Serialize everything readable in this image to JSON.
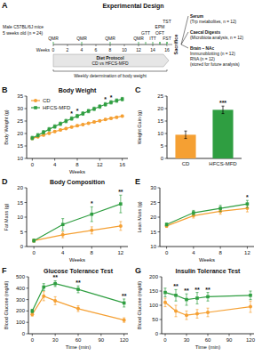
{
  "panel_a": {
    "panel": "A",
    "title": "Experimental Design",
    "subject": [
      "Male C57BL/6J mice",
      "5 weeks old (n = 24)"
    ],
    "weeks_label": "Weeks",
    "weeks": [
      0,
      2,
      4,
      6,
      8,
      10,
      12,
      14,
      16
    ],
    "events": [
      {
        "week": 0,
        "label": "QMR"
      },
      {
        "week": 4,
        "label": "QMR"
      },
      {
        "week": 8,
        "label": "QMR"
      },
      {
        "week": 12,
        "label": "QMR"
      },
      {
        "week": 13,
        "label": "GTT"
      },
      {
        "week": 14,
        "label": "ITT"
      },
      {
        "week": 15,
        "label": "OFT"
      },
      {
        "week": 15,
        "label": "EPM"
      },
      {
        "week": 16,
        "label": "FST"
      },
      {
        "week": 16,
        "label": "TST"
      }
    ],
    "diet": [
      "Diet Protocol",
      "CD vs HFCS-MFD"
    ],
    "weight_note": "Weekly determination of body weight",
    "endpoint": "Sacrifice",
    "outputs": [
      [
        "Serum",
        "(Trp metabolites, n = 12)"
      ],
      [
        "Caecal Digests",
        "(Microbiota analysis, n = 12)"
      ],
      [
        "Brain – NAc",
        "Immunoblotting (n = 12)",
        "RNA (n = 12)",
        "(stored for future analysis)"
      ]
    ]
  },
  "chart_data": [
    {
      "panel": "B",
      "type": "line",
      "title": "Body Weight",
      "x_label": "Weeks",
      "y_label": "Body Weight (g)",
      "x": [
        0,
        1,
        2,
        3,
        4,
        5,
        6,
        7,
        8,
        9,
        10,
        11,
        12,
        13,
        14,
        15,
        16
      ],
      "xlim": [
        -1,
        17
      ],
      "xticks": [
        0,
        4,
        8,
        12,
        16
      ],
      "ylim": [
        10,
        35
      ],
      "yticks": [
        10,
        15,
        20,
        25,
        30,
        35
      ],
      "legend": "upper-left",
      "series": [
        {
          "name": "CD",
          "color": "#f5a033",
          "marker": "circle",
          "values": [
            18,
            18.7,
            19.4,
            20.1,
            20.8,
            21.4,
            22,
            22.6,
            23.1,
            23.6,
            24.1,
            24.6,
            25.1,
            25.6,
            26.1,
            26.5,
            27
          ],
          "errors": [
            0.4,
            0.4,
            0.4,
            0.4,
            0.4,
            0.4,
            0.4,
            0.4,
            0.4,
            0.4,
            0.4,
            0.4,
            0.4,
            0.4,
            0.4,
            0.4,
            0.4
          ]
        },
        {
          "name": "HFCS-MFD",
          "color": "#2f9e41",
          "marker": "square",
          "values": [
            18.2,
            19.3,
            20.5,
            21.7,
            22.8,
            23.9,
            25,
            26,
            27,
            28,
            29,
            29.9,
            30.8,
            31.7,
            32.5,
            33.2,
            33.8
          ],
          "errors": [
            0.7,
            0.7,
            0.7,
            0.7,
            0.7,
            0.7,
            0.7,
            0.7,
            0.7,
            0.7,
            0.7,
            0.7,
            0.7,
            0.7,
            0.7,
            0.7,
            0.7
          ]
        }
      ],
      "annotations": [
        {
          "x": 7,
          "text": "*"
        },
        {
          "x": 8,
          "text": "*"
        },
        {
          "x": 13,
          "text": "*"
        },
        {
          "x": 14,
          "text": "*"
        }
      ]
    },
    {
      "panel": "C",
      "type": "bar",
      "title": "",
      "y_label": "Weight Gain (g)",
      "categories": [
        "CD",
        "HFCS-MFD"
      ],
      "values": [
        9.5,
        19.5
      ],
      "errors": [
        1.5,
        1.5
      ],
      "colors": [
        "#f5a033",
        "#2f9e41"
      ],
      "ylim": [
        0,
        25
      ],
      "yticks": [
        0,
        5,
        10,
        15,
        20,
        25
      ],
      "annotations": [
        {
          "category": "HFCS-MFD",
          "text": "***"
        }
      ]
    },
    {
      "panel": "D",
      "type": "line",
      "title": "Body Composition",
      "x_label": "Weeks",
      "y_label": "Fat Mass (g)",
      "x": [
        0,
        4,
        8,
        12
      ],
      "xlim": [
        -1,
        13
      ],
      "xticks": [
        0,
        4,
        8,
        12
      ],
      "ylim": [
        0,
        20
      ],
      "yticks": [
        0,
        5,
        10,
        15,
        20
      ],
      "series": [
        {
          "name": "CD",
          "color": "#f5a033",
          "marker": "circle",
          "values": [
            2,
            4,
            5.5,
            7
          ],
          "errors": [
            0.5,
            1,
            1.2,
            1.5
          ]
        },
        {
          "name": "HFCS-MFD",
          "color": "#2f9e41",
          "marker": "square",
          "values": [
            2,
            7.5,
            11,
            14.5
          ],
          "errors": [
            0.5,
            2,
            2.5,
            3
          ]
        }
      ],
      "annotations": [
        {
          "x": 8,
          "text": "*"
        },
        {
          "x": 12,
          "text": "**"
        }
      ]
    },
    {
      "panel": "E",
      "type": "line",
      "title": "",
      "x_label": "Weeks",
      "y_label": "Lean Mass (g)",
      "x": [
        0,
        4,
        8,
        12
      ],
      "xlim": [
        -1,
        13
      ],
      "xticks": [
        0,
        4,
        8,
        12
      ],
      "ylim": [
        10,
        30
      ],
      "yticks": [
        10,
        15,
        20,
        25,
        30
      ],
      "series": [
        {
          "name": "CD",
          "color": "#f5a033",
          "marker": "circle",
          "values": [
            17,
            20.5,
            22,
            23
          ],
          "errors": [
            0.5,
            0.8,
            1,
            1.2
          ]
        },
        {
          "name": "HFCS-MFD",
          "color": "#2f9e41",
          "marker": "square",
          "values": [
            17.5,
            21.5,
            23,
            24.5
          ],
          "errors": [
            0.5,
            0.8,
            1,
            1.2
          ]
        }
      ],
      "annotations": [
        {
          "x": 12,
          "text": "*"
        }
      ]
    },
    {
      "panel": "F",
      "type": "line",
      "title": "Glucose Tolerance Test",
      "x_label": "Time (min)",
      "y_label": "Blood Glucose (mg/dl)",
      "x": [
        0,
        15,
        30,
        60,
        120
      ],
      "xlim": [
        -5,
        125
      ],
      "xticks": [
        0,
        30,
        60,
        90,
        120
      ],
      "ylim": [
        0,
        500
      ],
      "yticks": [
        0,
        100,
        200,
        300,
        400,
        500
      ],
      "series": [
        {
          "name": "CD",
          "color": "#f5a033",
          "marker": "circle",
          "values": [
            170,
            330,
            290,
            220,
            120
          ],
          "errors": [
            15,
            40,
            35,
            25,
            20
          ]
        },
        {
          "name": "HFCS-MFD",
          "color": "#2f9e41",
          "marker": "square",
          "values": [
            200,
            410,
            440,
            390,
            270
          ],
          "errors": [
            15,
            30,
            25,
            30,
            35
          ]
        }
      ],
      "annotations": [
        {
          "x": 30,
          "text": "**"
        },
        {
          "x": 60,
          "text": "**"
        },
        {
          "x": 120,
          "text": "**"
        }
      ]
    },
    {
      "panel": "G",
      "type": "line",
      "title": "Insulin Tolerance Test",
      "x_label": "Time (min)",
      "y_label": "Blood Glucose (mg/dl)",
      "x": [
        0,
        15,
        30,
        45,
        60,
        120
      ],
      "xlim": [
        -5,
        125
      ],
      "xticks": [
        0,
        30,
        60,
        90,
        120
      ],
      "ylim": [
        0,
        200
      ],
      "yticks": [
        0,
        50,
        100,
        150,
        200
      ],
      "series": [
        {
          "name": "CD",
          "color": "#f5a033",
          "marker": "circle",
          "values": [
            110,
            80,
            65,
            70,
            75,
            95
          ],
          "errors": [
            15,
            20,
            15,
            15,
            15,
            20
          ]
        },
        {
          "name": "HFCS-MFD",
          "color": "#2f9e41",
          "marker": "square",
          "values": [
            145,
            135,
            120,
            125,
            130,
            135
          ],
          "errors": [
            15,
            20,
            20,
            20,
            15,
            15
          ]
        }
      ],
      "annotations": [
        {
          "x": 15,
          "text": "**"
        },
        {
          "x": 30,
          "text": "**"
        },
        {
          "x": 45,
          "text": "**"
        },
        {
          "x": 60,
          "text": "**"
        }
      ]
    }
  ]
}
